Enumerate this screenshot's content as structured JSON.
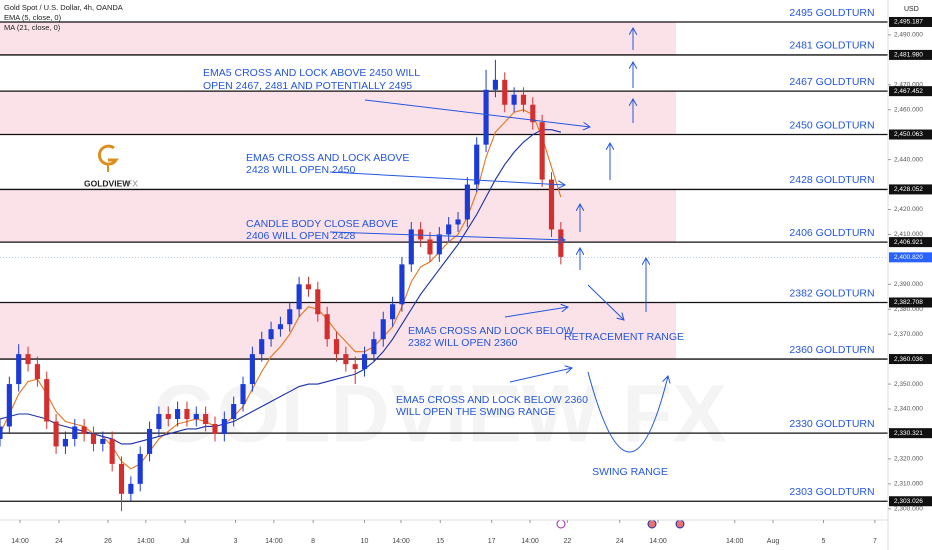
{
  "chart_data": {
    "type": "candlestick",
    "title": "Gold Spot / U.S. Dollar, 4h, OANDA",
    "currency": "USD",
    "logo": {
      "name": "GOLDVIEW",
      "suffix": "FX"
    },
    "watermark": "GOLDVIEW FX",
    "up_color": "#1c3bd6",
    "down_color": "#d32f2f",
    "open": [
      2328,
      2333,
      2350,
      2362,
      2358,
      2352,
      2335,
      2325,
      2328,
      2333,
      2330,
      2326,
      2328,
      2318,
      2306,
      2310,
      2322,
      2332,
      2338,
      2336,
      2340,
      2336,
      2338,
      2334,
      2330,
      2336,
      2342,
      2350,
      2362,
      2368,
      2372,
      2374,
      2380,
      2390,
      2388,
      2378,
      2368,
      2362,
      2358,
      2356,
      2362,
      2368,
      2376,
      2382,
      2398,
      2412,
      2408,
      2402,
      2410,
      2414,
      2416,
      2430,
      2446,
      2468,
      2472,
      2462,
      2466,
      2462,
      2455,
      2432,
      2412
    ],
    "high": [
      2336,
      2353,
      2366,
      2365,
      2361,
      2355,
      2338,
      2331,
      2336,
      2336,
      2333,
      2331,
      2331,
      2321,
      2313,
      2325,
      2335,
      2341,
      2341,
      2343,
      2343,
      2341,
      2341,
      2337,
      2339,
      2345,
      2353,
      2365,
      2371,
      2375,
      2377,
      2383,
      2393,
      2393,
      2391,
      2381,
      2371,
      2365,
      2361,
      2365,
      2371,
      2379,
      2385,
      2401,
      2415,
      2415,
      2411,
      2413,
      2417,
      2419,
      2433,
      2449,
      2476,
      2480,
      2475,
      2469,
      2469,
      2465,
      2458,
      2435,
      2415
    ],
    "low": [
      2325,
      2330,
      2347,
      2355,
      2349,
      2332,
      2322,
      2322,
      2325,
      2327,
      2323,
      2323,
      2315,
      2299,
      2303,
      2307,
      2319,
      2329,
      2333,
      2333,
      2333,
      2333,
      2331,
      2327,
      2327,
      2333,
      2339,
      2347,
      2359,
      2365,
      2369,
      2371,
      2377,
      2385,
      2375,
      2365,
      2359,
      2355,
      2350,
      2353,
      2359,
      2365,
      2373,
      2379,
      2395,
      2405,
      2399,
      2399,
      2407,
      2411,
      2413,
      2427,
      2443,
      2465,
      2459,
      2459,
      2459,
      2452,
      2429,
      2409,
      2398
    ],
    "close": [
      2333,
      2350,
      2362,
      2358,
      2352,
      2335,
      2325,
      2328,
      2333,
      2330,
      2326,
      2328,
      2318,
      2306,
      2310,
      2322,
      2332,
      2338,
      2336,
      2340,
      2336,
      2338,
      2334,
      2330,
      2336,
      2342,
      2350,
      2362,
      2368,
      2372,
      2374,
      2380,
      2390,
      2388,
      2378,
      2368,
      2362,
      2358,
      2356,
      2362,
      2368,
      2376,
      2382,
      2398,
      2412,
      2408,
      2402,
      2410,
      2414,
      2416,
      2430,
      2446,
      2468,
      2472,
      2462,
      2466,
      2462,
      2455,
      2432,
      2412,
      2401
    ],
    "series": [
      {
        "name": "EMA (5, close, 0)",
        "color": "#e8741b",
        "values": [
          2330,
          2338,
          2346,
          2351,
          2352,
          2346,
          2339,
          2335,
          2334,
          2333,
          2330,
          2329,
          2325,
          2319,
          2316,
          2318,
          2323,
          2328,
          2331,
          2334,
          2335,
          2336,
          2335,
          2333,
          2334,
          2337,
          2341,
          2348,
          2355,
          2361,
          2365,
          2370,
          2377,
          2381,
          2380,
          2376,
          2371,
          2367,
          2363,
          2363,
          2365,
          2369,
          2373,
          2381,
          2391,
          2397,
          2399,
          2403,
          2407,
          2410,
          2417,
          2427,
          2441,
          2451,
          2455,
          2459,
          2460,
          2458,
          2449,
          2437,
          2425
        ]
      },
      {
        "name": "MA (21, close, 0)",
        "color": "#1a2fa8",
        "values": [
          2336,
          2337,
          2338,
          2338,
          2337,
          2336,
          2334,
          2333,
          2332,
          2331,
          2330,
          2329,
          2328,
          2326,
          2326,
          2327,
          2328,
          2329,
          2330,
          2331,
          2332,
          2332,
          2333,
          2333,
          2334,
          2335,
          2337,
          2339,
          2341,
          2343,
          2345,
          2347,
          2349,
          2350,
          2350,
          2351,
          2352,
          2353,
          2354,
          2356,
          2359,
          2363,
          2368,
          2374,
          2380,
          2386,
          2391,
          2396,
          2401,
          2406,
          2412,
          2418,
          2425,
          2432,
          2438,
          2443,
          2447,
          2450,
          2452,
          2452,
          2451
        ]
      }
    ],
    "xlim": [
      0,
      95
    ],
    "xticks": [
      {
        "value": 2.14,
        "label": "14:00"
      },
      {
        "value": 6.31,
        "label": "24"
      },
      {
        "value": 11.55,
        "label": "26"
      },
      {
        "value": 15.6,
        "label": "14:00"
      },
      {
        "value": 19.8,
        "label": "Jul"
      },
      {
        "value": 25.2,
        "label": "3"
      },
      {
        "value": 29.3,
        "label": "14:00"
      },
      {
        "value": 33.5,
        "label": "8"
      },
      {
        "value": 39,
        "label": "10"
      },
      {
        "value": 42.9,
        "label": "14:00"
      },
      {
        "value": 47.1,
        "label": "15"
      },
      {
        "value": 52.6,
        "label": "17"
      },
      {
        "value": 56.7,
        "label": "14:00"
      },
      {
        "value": 60.7,
        "label": "22"
      },
      {
        "value": 66.3,
        "label": "24"
      },
      {
        "value": 70.4,
        "label": "14:00"
      },
      {
        "value": 78.6,
        "label": "14:00"
      },
      {
        "value": 82.7,
        "label": "Aug"
      },
      {
        "value": 88.1,
        "label": "5"
      },
      {
        "value": 93.6,
        "label": "7"
      }
    ],
    "ylim": [
      2295.5,
      2504
    ],
    "yticks": [
      {
        "value": 2300,
        "label": "2,300.000"
      },
      {
        "value": 2310,
        "label": "2,310.000"
      },
      {
        "value": 2320,
        "label": "2,320.000"
      },
      {
        "value": 2340,
        "label": "2,340.000"
      },
      {
        "value": 2350,
        "label": "2,350.000"
      },
      {
        "value": 2370,
        "label": "2,370.000"
      },
      {
        "value": 2380,
        "label": "2,380.000"
      },
      {
        "value": 2390,
        "label": "2,390.000"
      },
      {
        "value": 2410,
        "label": "2,410.000"
      },
      {
        "value": 2420,
        "label": "2,420.000"
      },
      {
        "value": 2440,
        "label": "2,440.000"
      },
      {
        "value": 2460,
        "label": "2,460.000"
      },
      {
        "value": 2470,
        "label": "2,470.000"
      },
      {
        "value": 2490,
        "label": "2,490.000"
      }
    ],
    "levels": [
      {
        "value": 2495.187,
        "label": "2,495.187",
        "name": "2495 GOLDTURN",
        "shaded": true
      },
      {
        "value": 2481.98,
        "label": "2,481.980",
        "name": "2481 GOLDTURN",
        "shaded": false
      },
      {
        "value": 2467.452,
        "label": "2,467.452",
        "name": "2467 GOLDTURN",
        "shaded": true
      },
      {
        "value": 2450.063,
        "label": "2,450.063",
        "name": "2450 GOLDTURN",
        "shaded": false
      },
      {
        "value": 2428.052,
        "label": "2,428.052",
        "name": "2428 GOLDTURN",
        "shaded": true
      },
      {
        "value": 2406.921,
        "label": "2,406.921",
        "name": "2406 GOLDTURN",
        "shaded": false
      },
      {
        "value": 2382.708,
        "label": "2,382.708",
        "name": "2382 GOLDTURN",
        "shaded": true
      },
      {
        "value": 2360.036,
        "label": "2,360.036",
        "name": "2360 GOLDTURN",
        "shaded": false
      },
      {
        "value": 2330.321,
        "label": "2,330.321",
        "name": "2330 GOLDTURN",
        "shaded": false
      },
      {
        "value": 2303.026,
        "label": "2,303.026",
        "name": "2303 GOLDTURN",
        "shaded": false
      }
    ],
    "last": {
      "value": 2400.82,
      "label": "2,400.820"
    },
    "annotations": [
      {
        "lines": [
          "EMA5 CROSS AND LOCK ABOVE 2450 WILL",
          "OPEN 2467, 2481 AND POTENTIALLY 2495"
        ]
      },
      {
        "lines": [
          "EMA5 CROSS AND LOCK ABOVE",
          "2428 WILL OPEN 2450"
        ]
      },
      {
        "lines": [
          "CANDLE BODY CLOSE ABOVE",
          "2406 WILL OPEN 2428"
        ]
      },
      {
        "lines": [
          "EMA5 CROSS AND LOCK BELOW",
          "2382 WILL OPEN 2360"
        ]
      },
      {
        "lines": [
          "EMA5 CROSS AND LOCK BELOW 2360",
          "WILL OPEN THE SWING RANGE"
        ]
      },
      {
        "lines": [
          "RETRACEMENT RANGE"
        ]
      },
      {
        "lines": [
          "SWING RANGE"
        ]
      }
    ]
  }
}
